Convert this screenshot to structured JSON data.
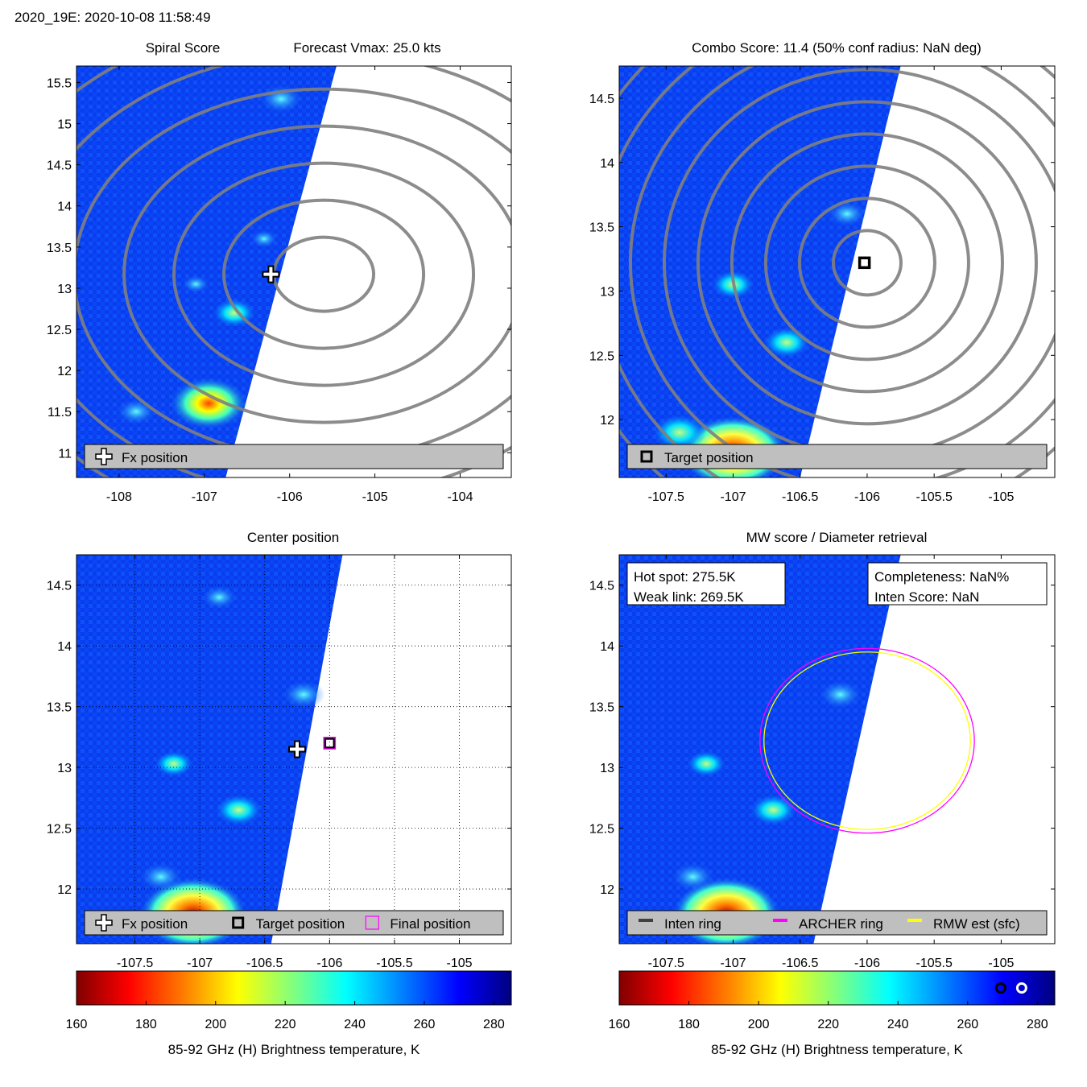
{
  "header": {
    "title": "2020_19E: 2020-10-08 11:58:49"
  },
  "colors": {
    "track": "#808080",
    "archer": "#ff00ff",
    "rmw": "#ffff00",
    "legend_bg": "#bfbfbf",
    "colormap": [
      "#800000",
      "#ff0000",
      "#ff8000",
      "#ffff00",
      "#80ff80",
      "#00ffff",
      "#0080ff",
      "#0000ff",
      "#000080"
    ]
  },
  "chart_data": [
    {
      "id": "spiral",
      "type": "heatmap",
      "title_left": "Spiral Score",
      "title_right": "Forecast Vmax: 25.0 kts",
      "xlim": [
        -108.5,
        -103.4
      ],
      "ylim": [
        10.7,
        15.7
      ],
      "xticks": [
        -108,
        -107,
        -106,
        -105,
        -104
      ],
      "yticks": [
        11,
        11.5,
        12,
        12.5,
        13,
        13.5,
        14,
        14.5,
        15,
        15.5
      ],
      "swath_edge": [
        [
          -105.45,
          15.7
        ],
        [
          -106.75,
          10.7
        ]
      ],
      "fx_position": [
        -106.22,
        13.17
      ],
      "warm_spots": [
        {
          "x": -106.95,
          "y": 11.6,
          "tb": 205
        },
        {
          "x": -106.65,
          "y": 12.7,
          "tb": 245
        },
        {
          "x": -106.1,
          "y": 15.3,
          "tb": 245
        },
        {
          "x": -107.8,
          "y": 11.5,
          "tb": 248
        }
      ],
      "legend": [
        {
          "symbol": "plus",
          "label": "Fx position"
        }
      ]
    },
    {
      "id": "combo",
      "type": "heatmap",
      "title": "Combo Score: 11.4  (50% conf radius: NaN deg)",
      "xlim": [
        -107.85,
        -104.6
      ],
      "ylim": [
        11.55,
        14.75
      ],
      "xticks": [
        -107.5,
        -107,
        -106.5,
        -106,
        -105.5,
        -105
      ],
      "yticks": [
        12,
        12.5,
        13,
        13.5,
        14,
        14.5
      ],
      "swath_edge": [
        [
          -105.75,
          14.75
        ],
        [
          -106.5,
          11.55
        ]
      ],
      "target_position": [
        -106.02,
        13.22
      ],
      "legend": [
        {
          "symbol": "square",
          "label": "Target position"
        }
      ]
    },
    {
      "id": "center",
      "type": "heatmap",
      "title": "Center position",
      "xlim": [
        -107.95,
        -104.6
      ],
      "ylim": [
        11.55,
        14.75
      ],
      "xticks": [
        -107.5,
        -107,
        -106.5,
        -106,
        -105.5,
        -105
      ],
      "yticks": [
        12,
        12.5,
        13,
        13.5,
        14,
        14.5
      ],
      "swath_edge": [
        [
          -105.9,
          14.75
        ],
        [
          -106.45,
          11.55
        ]
      ],
      "fx_position": [
        -106.25,
        13.15
      ],
      "target_position": [
        -106.0,
        13.2
      ],
      "final_position": [
        -106.0,
        13.2
      ],
      "legend": [
        {
          "symbol": "plus",
          "label": "Fx position"
        },
        {
          "symbol": "square",
          "label": "Target position"
        },
        {
          "symbol": "magsquare",
          "label": "Final position"
        }
      ]
    },
    {
      "id": "mw",
      "type": "heatmap",
      "title": "MW score / Diameter retrieval",
      "xlim": [
        -107.85,
        -104.6
      ],
      "ylim": [
        11.55,
        14.75
      ],
      "xticks": [
        -107.5,
        -107,
        -106.5,
        -106,
        -105.5,
        -105
      ],
      "yticks": [
        12,
        12.5,
        13,
        13.5,
        14,
        14.5
      ],
      "swath_edge": [
        [
          -105.75,
          14.75
        ],
        [
          -106.4,
          11.55
        ]
      ],
      "archer_ring": {
        "cx": -106.0,
        "cy": 13.22,
        "rx_deg": 0.8,
        "ry_deg": 0.76
      },
      "rmw_ring": {
        "cx": -106.0,
        "cy": 13.22,
        "rx_deg": 0.77,
        "ry_deg": 0.73
      },
      "info_left": [
        "Hot spot: 275.5K",
        "Weak link: 269.5K"
      ],
      "info_right": [
        "Completeness: NaN%",
        "Inten Score: NaN"
      ],
      "legend": [
        {
          "symbol": "line",
          "color": "#404040",
          "label": "Inten ring"
        },
        {
          "symbol": "line",
          "color": "#ff00ff",
          "label": "ARCHER ring"
        },
        {
          "symbol": "line",
          "color": "#ffff00",
          "label": "RMW est (sfc)"
        }
      ]
    }
  ],
  "colorbars": [
    {
      "range": [
        160,
        285
      ],
      "ticks": [
        160,
        180,
        200,
        220,
        240,
        260,
        280
      ],
      "label": "85-92 GHz (H) Brightness temperature, K",
      "markers": []
    },
    {
      "range": [
        160,
        285
      ],
      "ticks": [
        160,
        180,
        200,
        220,
        240,
        260,
        280
      ],
      "label": "85-92 GHz (H) Brightness temperature, K",
      "markers": [
        {
          "value": 269.5,
          "style": "black"
        },
        {
          "value": 275.5,
          "style": "white"
        }
      ]
    }
  ]
}
